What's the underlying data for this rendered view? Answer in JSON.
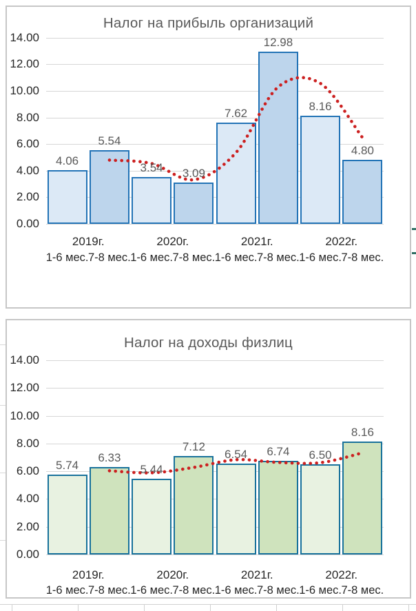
{
  "style": {
    "panel_border": "#C6C6C6",
    "gridline": "#D6D6D6",
    "sheet_gridline": "#D0D0D0",
    "axis_text": "#262626",
    "label_text": "#595959",
    "accent_mark": "#2F6E63"
  },
  "chart_data": [
    {
      "type": "bar",
      "title": "Налог на прибыль организаций",
      "categories": [
        "2019г. 1-6 мес.",
        "2019г. 7-8 мес.",
        "2020г. 1-6 мес.",
        "2020г. 7-8 мес.",
        "2021г. 1-6 мес.",
        "2021г. 7-8 мес.",
        "2022г. 1-6 мес.",
        "2022г. 7-8 мес."
      ],
      "values": [
        4.06,
        5.54,
        3.54,
        3.09,
        7.62,
        12.98,
        8.16,
        4.8
      ],
      "data_labels": [
        "4.06",
        "5.54",
        "3.54",
        "3.09",
        "7.62",
        "12.98",
        "8.16",
        "4.80"
      ],
      "x_year_labels": [
        "2019г.",
        "2020г.",
        "2021г.",
        "2022г."
      ],
      "x_period_labels": [
        "1-6 мес.",
        "7-8 мес.",
        "1-6 мес.",
        "7-8 мес.",
        "1-6 мес.",
        "7-8 мес.",
        "1-6 мес.",
        "7-8 мес."
      ],
      "y_tick_labels": [
        "14.00",
        "12.00",
        "10.00",
        "8.00",
        "6.00",
        "4.00",
        "2.00",
        "0.00"
      ],
      "ylim": [
        0,
        14
      ],
      "y_step": 2,
      "grid": true,
      "legend": false,
      "trendline": {
        "type": "moving-average-2",
        "style": "dotted",
        "values": [
          4.8,
          4.54,
          3.32,
          5.36,
          10.3,
          10.57,
          6.48
        ]
      },
      "bar_fill_alt": [
        "#DCE9F6",
        "#BDD5EC"
      ],
      "bar_border": "#2273B6",
      "trend_color": "#CC2020"
    },
    {
      "type": "bar",
      "title": "Налог на доходы физлиц",
      "categories": [
        "2019г. 1-6 мес.",
        "2019г. 7-8 мес.",
        "2020г. 1-6 мес.",
        "2020г. 7-8 мес.",
        "2021г. 1-6 мес.",
        "2021г. 7-8 мес.",
        "2022г. 1-6 мес.",
        "2022г. 7-8 мес."
      ],
      "values": [
        5.74,
        6.33,
        5.44,
        7.12,
        6.54,
        6.74,
        6.5,
        8.16
      ],
      "data_labels": [
        "5.74",
        "6.33",
        "5.44",
        "7.12",
        "6.54",
        "6.74",
        "6.50",
        "8.16"
      ],
      "x_year_labels": [
        "2019г.",
        "2020г.",
        "2021г.",
        "2022г."
      ],
      "x_period_labels": [
        "1-6 мес.",
        "7-8 мес.",
        "1-6 мес.",
        "7-8 мес.",
        "1-6 мес.",
        "7-8 мес.",
        "1-6 мес.",
        "7-8 мес."
      ],
      "y_tick_labels": [
        "14.00",
        "12.00",
        "10.00",
        "8.00",
        "6.00",
        "4.00",
        "2.00",
        "0.00"
      ],
      "ylim": [
        0,
        14
      ],
      "y_step": 2,
      "grid": true,
      "legend": false,
      "trendline": {
        "type": "moving-average-2",
        "style": "dotted",
        "values": [
          6.04,
          5.89,
          6.28,
          6.83,
          6.64,
          6.62,
          7.33
        ]
      },
      "bar_fill_alt": [
        "#E8F2E1",
        "#CFE3BD"
      ],
      "bar_border": "#17719B",
      "trend_color": "#CC2020"
    }
  ]
}
